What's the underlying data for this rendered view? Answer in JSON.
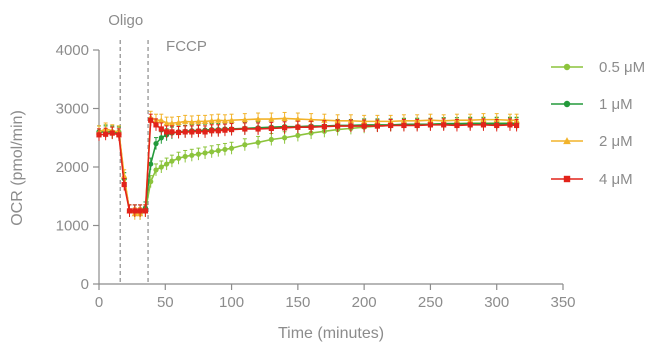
{
  "chart_data": {
    "type": "line",
    "title": "",
    "xlabel": "Time (minutes)",
    "ylabel": "OCR (pmol/min)",
    "xlim": [
      0,
      350
    ],
    "ylim": [
      0,
      4000
    ],
    "xticks": [
      0,
      50,
      100,
      150,
      200,
      250,
      300,
      350
    ],
    "yticks": [
      0,
      1000,
      2000,
      3000,
      4000
    ],
    "grid": false,
    "legend_position": "right",
    "annotations": [
      {
        "label": "Oligo",
        "x": 16
      },
      {
        "label": "FCCP",
        "x": 37
      }
    ],
    "series": [
      {
        "name": "0.5 μM",
        "color": "#8cc43c",
        "marker": "circle",
        "x": [
          0,
          5,
          10,
          15,
          19,
          23,
          27,
          31,
          35,
          39,
          43,
          47,
          51,
          55,
          60,
          65,
          70,
          75,
          80,
          85,
          90,
          95,
          100,
          110,
          120,
          130,
          140,
          150,
          160,
          170,
          180,
          190,
          200,
          210,
          220,
          230,
          240,
          250,
          260,
          270,
          280,
          290,
          300,
          310,
          315
        ],
        "y": [
          2600,
          2620,
          2580,
          2600,
          1800,
          1250,
          1250,
          1200,
          1250,
          1750,
          1950,
          2000,
          2050,
          2100,
          2150,
          2180,
          2200,
          2220,
          2240,
          2260,
          2280,
          2300,
          2320,
          2380,
          2420,
          2470,
          2500,
          2540,
          2580,
          2610,
          2640,
          2660,
          2680,
          2700,
          2710,
          2720,
          2730,
          2730,
          2740,
          2740,
          2750,
          2750,
          2750,
          2750,
          2750
        ]
      },
      {
        "name": "1 μM",
        "color": "#239a3b",
        "marker": "circle",
        "x": [
          0,
          5,
          10,
          15,
          19,
          23,
          27,
          31,
          35,
          39,
          43,
          47,
          51,
          55,
          60,
          65,
          70,
          75,
          80,
          85,
          90,
          95,
          100,
          110,
          120,
          130,
          140,
          150,
          160,
          170,
          180,
          190,
          200,
          210,
          220,
          230,
          240,
          250,
          260,
          270,
          280,
          290,
          300,
          310,
          315
        ],
        "y": [
          2600,
          2600,
          2600,
          2580,
          1800,
          1250,
          1250,
          1250,
          1300,
          2050,
          2400,
          2500,
          2550,
          2580,
          2600,
          2610,
          2620,
          2620,
          2630,
          2640,
          2640,
          2650,
          2650,
          2660,
          2670,
          2680,
          2690,
          2690,
          2700,
          2700,
          2710,
          2710,
          2720,
          2720,
          2720,
          2730,
          2730,
          2730,
          2740,
          2740,
          2740,
          2740,
          2740,
          2740,
          2740
        ]
      },
      {
        "name": "2 μM",
        "color": "#f2b32a",
        "marker": "triangle",
        "x": [
          0,
          5,
          10,
          15,
          19,
          23,
          27,
          31,
          35,
          39,
          43,
          47,
          51,
          55,
          60,
          65,
          70,
          75,
          80,
          85,
          90,
          95,
          100,
          110,
          120,
          130,
          140,
          150,
          160,
          170,
          180,
          190,
          200,
          210,
          220,
          230,
          240,
          250,
          260,
          270,
          280,
          290,
          300,
          310,
          315
        ],
        "y": [
          2600,
          2650,
          2620,
          2600,
          1850,
          1250,
          1200,
          1200,
          1250,
          2850,
          2800,
          2800,
          2750,
          2750,
          2760,
          2780,
          2770,
          2780,
          2780,
          2790,
          2800,
          2790,
          2800,
          2810,
          2820,
          2820,
          2830,
          2820,
          2810,
          2800,
          2790,
          2790,
          2780,
          2780,
          2780,
          2790,
          2790,
          2800,
          2790,
          2800,
          2800,
          2810,
          2810,
          2800,
          2800
        ]
      },
      {
        "name": "4 μM",
        "color": "#e2231a",
        "marker": "square",
        "x": [
          0,
          5,
          10,
          15,
          19,
          23,
          27,
          31,
          35,
          39,
          43,
          47,
          51,
          55,
          60,
          65,
          70,
          75,
          80,
          85,
          90,
          95,
          100,
          110,
          120,
          130,
          140,
          150,
          160,
          170,
          180,
          190,
          200,
          210,
          220,
          230,
          240,
          250,
          260,
          270,
          280,
          290,
          300,
          310,
          315
        ],
        "y": [
          2550,
          2560,
          2580,
          2550,
          1700,
          1250,
          1250,
          1250,
          1250,
          2800,
          2720,
          2650,
          2600,
          2600,
          2590,
          2600,
          2600,
          2610,
          2600,
          2620,
          2620,
          2630,
          2640,
          2650,
          2650,
          2660,
          2670,
          2680,
          2680,
          2690,
          2700,
          2700,
          2700,
          2700,
          2710,
          2710,
          2710,
          2720,
          2720,
          2710,
          2720,
          2720,
          2710,
          2720,
          2710
        ]
      }
    ]
  }
}
